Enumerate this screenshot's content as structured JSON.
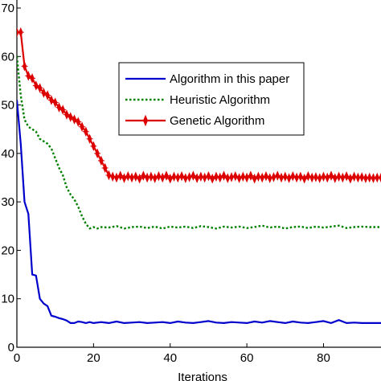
{
  "chart_data": {
    "type": "line",
    "title": "",
    "xlabel": "Iterations",
    "ylabel": "",
    "xlim": [
      0,
      95
    ],
    "ylim": [
      0,
      70
    ],
    "xticks": [
      "0",
      "20",
      "40",
      "60",
      "80"
    ],
    "yticks": [
      "0",
      "10",
      "20",
      "30",
      "40",
      "50",
      "60",
      "70"
    ],
    "legend_position": "upper-right",
    "grid": false,
    "series": [
      {
        "name": "Algorithm in this paper",
        "color": "#0000cc",
        "style": "solid",
        "x": [
          0,
          1,
          2,
          3,
          4,
          5,
          6,
          7,
          8,
          9,
          10,
          11,
          12,
          13,
          14,
          15,
          16,
          17,
          18,
          19,
          20,
          22,
          24,
          26,
          28,
          30,
          32,
          34,
          36,
          38,
          40,
          42,
          44,
          46,
          48,
          50,
          52,
          54,
          56,
          58,
          60,
          62,
          64,
          66,
          68,
          70,
          72,
          74,
          76,
          78,
          80,
          82,
          84,
          86,
          88,
          90,
          92,
          95
        ],
        "y": [
          51,
          42,
          30,
          27.5,
          15,
          14.8,
          10,
          9,
          8.5,
          6.5,
          6.3,
          6,
          5.8,
          5.5,
          5,
          5,
          5.3,
          5.2,
          5,
          5.2,
          5,
          5.2,
          5,
          5.3,
          5,
          5.1,
          5.2,
          5.0,
          5.1,
          5.2,
          5,
          5.3,
          5.1,
          5,
          5.2,
          5.4,
          5.1,
          5.0,
          5.2,
          5.1,
          5.0,
          5.3,
          5.1,
          5.4,
          5.2,
          5.0,
          5.3,
          5.1,
          5.0,
          5.2,
          5.4,
          5.0,
          5.6,
          5.0,
          5.1,
          5.0,
          5.0,
          5.0
        ]
      },
      {
        "name": "Heuristic Algorithm",
        "color": "#008000",
        "style": "dotted",
        "x": [
          0,
          1,
          2,
          3,
          4,
          5,
          6,
          7,
          8,
          9,
          10,
          11,
          12,
          13,
          14,
          15,
          16,
          17,
          18,
          19,
          20,
          21,
          22,
          24,
          26,
          28,
          30,
          32,
          34,
          36,
          38,
          40,
          42,
          44,
          46,
          48,
          50,
          52,
          54,
          56,
          58,
          60,
          62,
          64,
          66,
          68,
          70,
          72,
          74,
          76,
          78,
          80,
          82,
          84,
          86,
          88,
          90,
          92,
          95
        ],
        "y": [
          60,
          52,
          47,
          45.5,
          45,
          44.5,
          43,
          42.5,
          42,
          41,
          39,
          37,
          35.5,
          33,
          31.5,
          30.5,
          29,
          27,
          25.5,
          24.5,
          24.8,
          24.5,
          24.8,
          24.7,
          25.0,
          24.5,
          24.8,
          24.9,
          24.6,
          24.9,
          24.5,
          24.9,
          24.7,
          24.9,
          24.6,
          25.0,
          24.8,
          24.5,
          24.9,
          24.7,
          24.9,
          24.6,
          24.8,
          25.1,
          24.7,
          24.9,
          24.5,
          24.8,
          24.9,
          24.6,
          24.9,
          24.7,
          24.9,
          25.1,
          24.6,
          24.8,
          24.9,
          24.8,
          24.8
        ]
      },
      {
        "name": "Genetic Algorithm",
        "color": "#dd0000",
        "style": "solid-marker",
        "x": [
          0,
          1,
          2,
          3,
          4,
          5,
          6,
          7,
          8,
          9,
          10,
          11,
          12,
          13,
          14,
          15,
          16,
          17,
          18,
          19,
          20,
          21,
          22,
          23,
          24,
          25,
          26,
          27,
          28,
          29,
          30,
          31,
          32,
          33,
          34,
          35,
          36,
          37,
          38,
          39,
          40,
          41,
          42,
          43,
          44,
          45,
          46,
          47,
          48,
          49,
          50,
          51,
          52,
          53,
          54,
          55,
          56,
          57,
          58,
          59,
          60,
          61,
          62,
          63,
          64,
          65,
          66,
          67,
          68,
          69,
          70,
          71,
          72,
          73,
          74,
          75,
          76,
          77,
          78,
          79,
          80,
          81,
          82,
          83,
          84,
          85,
          86,
          87,
          88,
          89,
          90,
          91,
          92,
          93,
          94,
          95
        ],
        "y": [
          65,
          65,
          58,
          56,
          55.5,
          54,
          53.5,
          52.5,
          52,
          51,
          50.5,
          49.5,
          49,
          48,
          47.5,
          47,
          46.5,
          45.5,
          44.5,
          43,
          41.5,
          40,
          38.5,
          37,
          35.5,
          35.2,
          35.0,
          35.4,
          34.9,
          35.3,
          35.0,
          35.2,
          34.8,
          35.4,
          35.0,
          35.2,
          34.9,
          35.3,
          35.0,
          35.4,
          34.8,
          35.2,
          35.0,
          35.3,
          34.9,
          35.1,
          35.4,
          34.9,
          35.2,
          35.0,
          35.3,
          34.8,
          35.2,
          35.0,
          35.4,
          34.9,
          35.1,
          35.3,
          34.9,
          35.2,
          35.0,
          35.4,
          34.8,
          35.2,
          35.0,
          35.3,
          34.9,
          35.1,
          35.4,
          35.0,
          35.2,
          34.9,
          35.3,
          35.0,
          35.2,
          34.8,
          35.3,
          35.0,
          35.1,
          34.9,
          35.2,
          35.0,
          35.4,
          34.9,
          35.2,
          35.0,
          35.3,
          34.8,
          35.2,
          35.0,
          35.1,
          34.9,
          35.0,
          34.9,
          35.0,
          35.0
        ]
      }
    ]
  }
}
